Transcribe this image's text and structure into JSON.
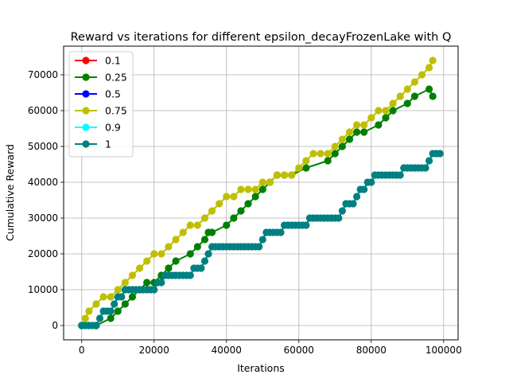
{
  "chart_data": {
    "type": "line",
    "title": "Reward vs iterations for different epsilon_decayFrozenLake with Q",
    "xlabel": "Iterations",
    "ylabel": "Cumulative Reward",
    "xlim": [
      -5000,
      104000
    ],
    "ylim": [
      -4000,
      78000
    ],
    "x_ticks": [
      0,
      20000,
      40000,
      60000,
      80000,
      100000
    ],
    "y_ticks": [
      0,
      10000,
      20000,
      30000,
      40000,
      50000,
      60000,
      70000
    ],
    "grid": true,
    "legend_position": "top-left",
    "series": [
      {
        "name": "0.1",
        "color": "#ff0000",
        "x": [
          0,
          4000
        ],
        "y": [
          0,
          0
        ]
      },
      {
        "name": "0.25",
        "color": "#008000",
        "x": [
          0,
          2000,
          4000,
          8000,
          10000,
          12000,
          14000,
          16000,
          18000,
          20000,
          22000,
          24000,
          26000,
          30000,
          32000,
          34000,
          35000,
          36000,
          40000,
          42000,
          44000,
          46000,
          48000,
          50000,
          52000,
          54000,
          56000,
          58000,
          62000,
          68000,
          70000,
          72000,
          74000,
          76000,
          78000,
          82000,
          84000,
          86000,
          90000,
          92000,
          96000,
          97000
        ],
        "y": [
          0,
          0,
          0,
          2000,
          4000,
          6000,
          8000,
          10000,
          12000,
          12000,
          14000,
          16000,
          18000,
          20000,
          22000,
          24000,
          26000,
          26000,
          28000,
          30000,
          32000,
          34000,
          36000,
          38000,
          40000,
          42000,
          42000,
          42000,
          44000,
          46000,
          48000,
          50000,
          52000,
          54000,
          54000,
          56000,
          58000,
          60000,
          62000,
          64000,
          66000,
          64000
        ]
      },
      {
        "name": "0.5",
        "color": "#0000ff",
        "x": [
          0,
          4000
        ],
        "y": [
          0,
          0
        ]
      },
      {
        "name": "0.75",
        "color": "#bfbf00",
        "x": [
          0,
          1000,
          2000,
          4000,
          6000,
          8000,
          10000,
          12000,
          14000,
          16000,
          18000,
          20000,
          22000,
          24000,
          26000,
          28000,
          30000,
          32000,
          34000,
          36000,
          38000,
          40000,
          42000,
          44000,
          46000,
          48000,
          50000,
          52000,
          54000,
          56000,
          58000,
          60000,
          62000,
          64000,
          66000,
          68000,
          70000,
          72000,
          74000,
          76000,
          78000,
          80000,
          82000,
          84000,
          86000,
          88000,
          90000,
          92000,
          94000,
          96000,
          97000
        ],
        "y": [
          0,
          2000,
          4000,
          6000,
          8000,
          8000,
          10000,
          12000,
          14000,
          16000,
          18000,
          20000,
          20000,
          22000,
          24000,
          26000,
          28000,
          28000,
          30000,
          32000,
          34000,
          36000,
          36000,
          38000,
          38000,
          38000,
          40000,
          40000,
          42000,
          42000,
          42000,
          44000,
          46000,
          48000,
          48000,
          48000,
          50000,
          52000,
          54000,
          56000,
          56000,
          58000,
          60000,
          60000,
          62000,
          64000,
          66000,
          68000,
          70000,
          72000,
          74000
        ]
      },
      {
        "name": "0.9",
        "color": "#00ffff",
        "x": [
          0,
          4000
        ],
        "y": [
          0,
          0
        ]
      },
      {
        "name": "1",
        "color": "#008080",
        "x": [
          0,
          1000,
          2000,
          3000,
          4000,
          5000,
          6000,
          7000,
          8000,
          9000,
          10000,
          11000,
          12000,
          13000,
          14000,
          15000,
          16000,
          17000,
          18000,
          19000,
          20000,
          21000,
          22000,
          23000,
          24000,
          25000,
          26000,
          27000,
          28000,
          29000,
          30000,
          31000,
          32000,
          33000,
          34000,
          35000,
          36000,
          37000,
          38000,
          39000,
          40000,
          41000,
          42000,
          43000,
          44000,
          45000,
          46000,
          47000,
          48000,
          49000,
          50000,
          51000,
          52000,
          53000,
          54000,
          55000,
          56000,
          57000,
          58000,
          59000,
          60000,
          61000,
          62000,
          63000,
          64000,
          65000,
          66000,
          67000,
          68000,
          69000,
          70000,
          71000,
          72000,
          73000,
          74000,
          75000,
          76000,
          77000,
          78000,
          79000,
          80000,
          81000,
          82000,
          83000,
          84000,
          85000,
          86000,
          87000,
          88000,
          89000,
          90000,
          91000,
          92000,
          93000,
          94000,
          95000,
          96000,
          97000,
          98000,
          99000
        ],
        "y": [
          0,
          0,
          0,
          0,
          0,
          2000,
          4000,
          4000,
          4000,
          6000,
          8000,
          8000,
          10000,
          10000,
          10000,
          10000,
          10000,
          10000,
          10000,
          10000,
          10000,
          12000,
          12000,
          14000,
          14000,
          14000,
          14000,
          14000,
          14000,
          14000,
          14000,
          16000,
          16000,
          16000,
          18000,
          20000,
          22000,
          22000,
          22000,
          22000,
          22000,
          22000,
          22000,
          22000,
          22000,
          22000,
          22000,
          22000,
          22000,
          22000,
          24000,
          26000,
          26000,
          26000,
          26000,
          26000,
          28000,
          28000,
          28000,
          28000,
          28000,
          28000,
          28000,
          30000,
          30000,
          30000,
          30000,
          30000,
          30000,
          30000,
          30000,
          30000,
          32000,
          34000,
          34000,
          34000,
          36000,
          38000,
          38000,
          40000,
          40000,
          42000,
          42000,
          42000,
          42000,
          42000,
          42000,
          42000,
          42000,
          44000,
          44000,
          44000,
          44000,
          44000,
          44000,
          44000,
          46000,
          48000,
          48000,
          48000
        ]
      }
    ]
  }
}
